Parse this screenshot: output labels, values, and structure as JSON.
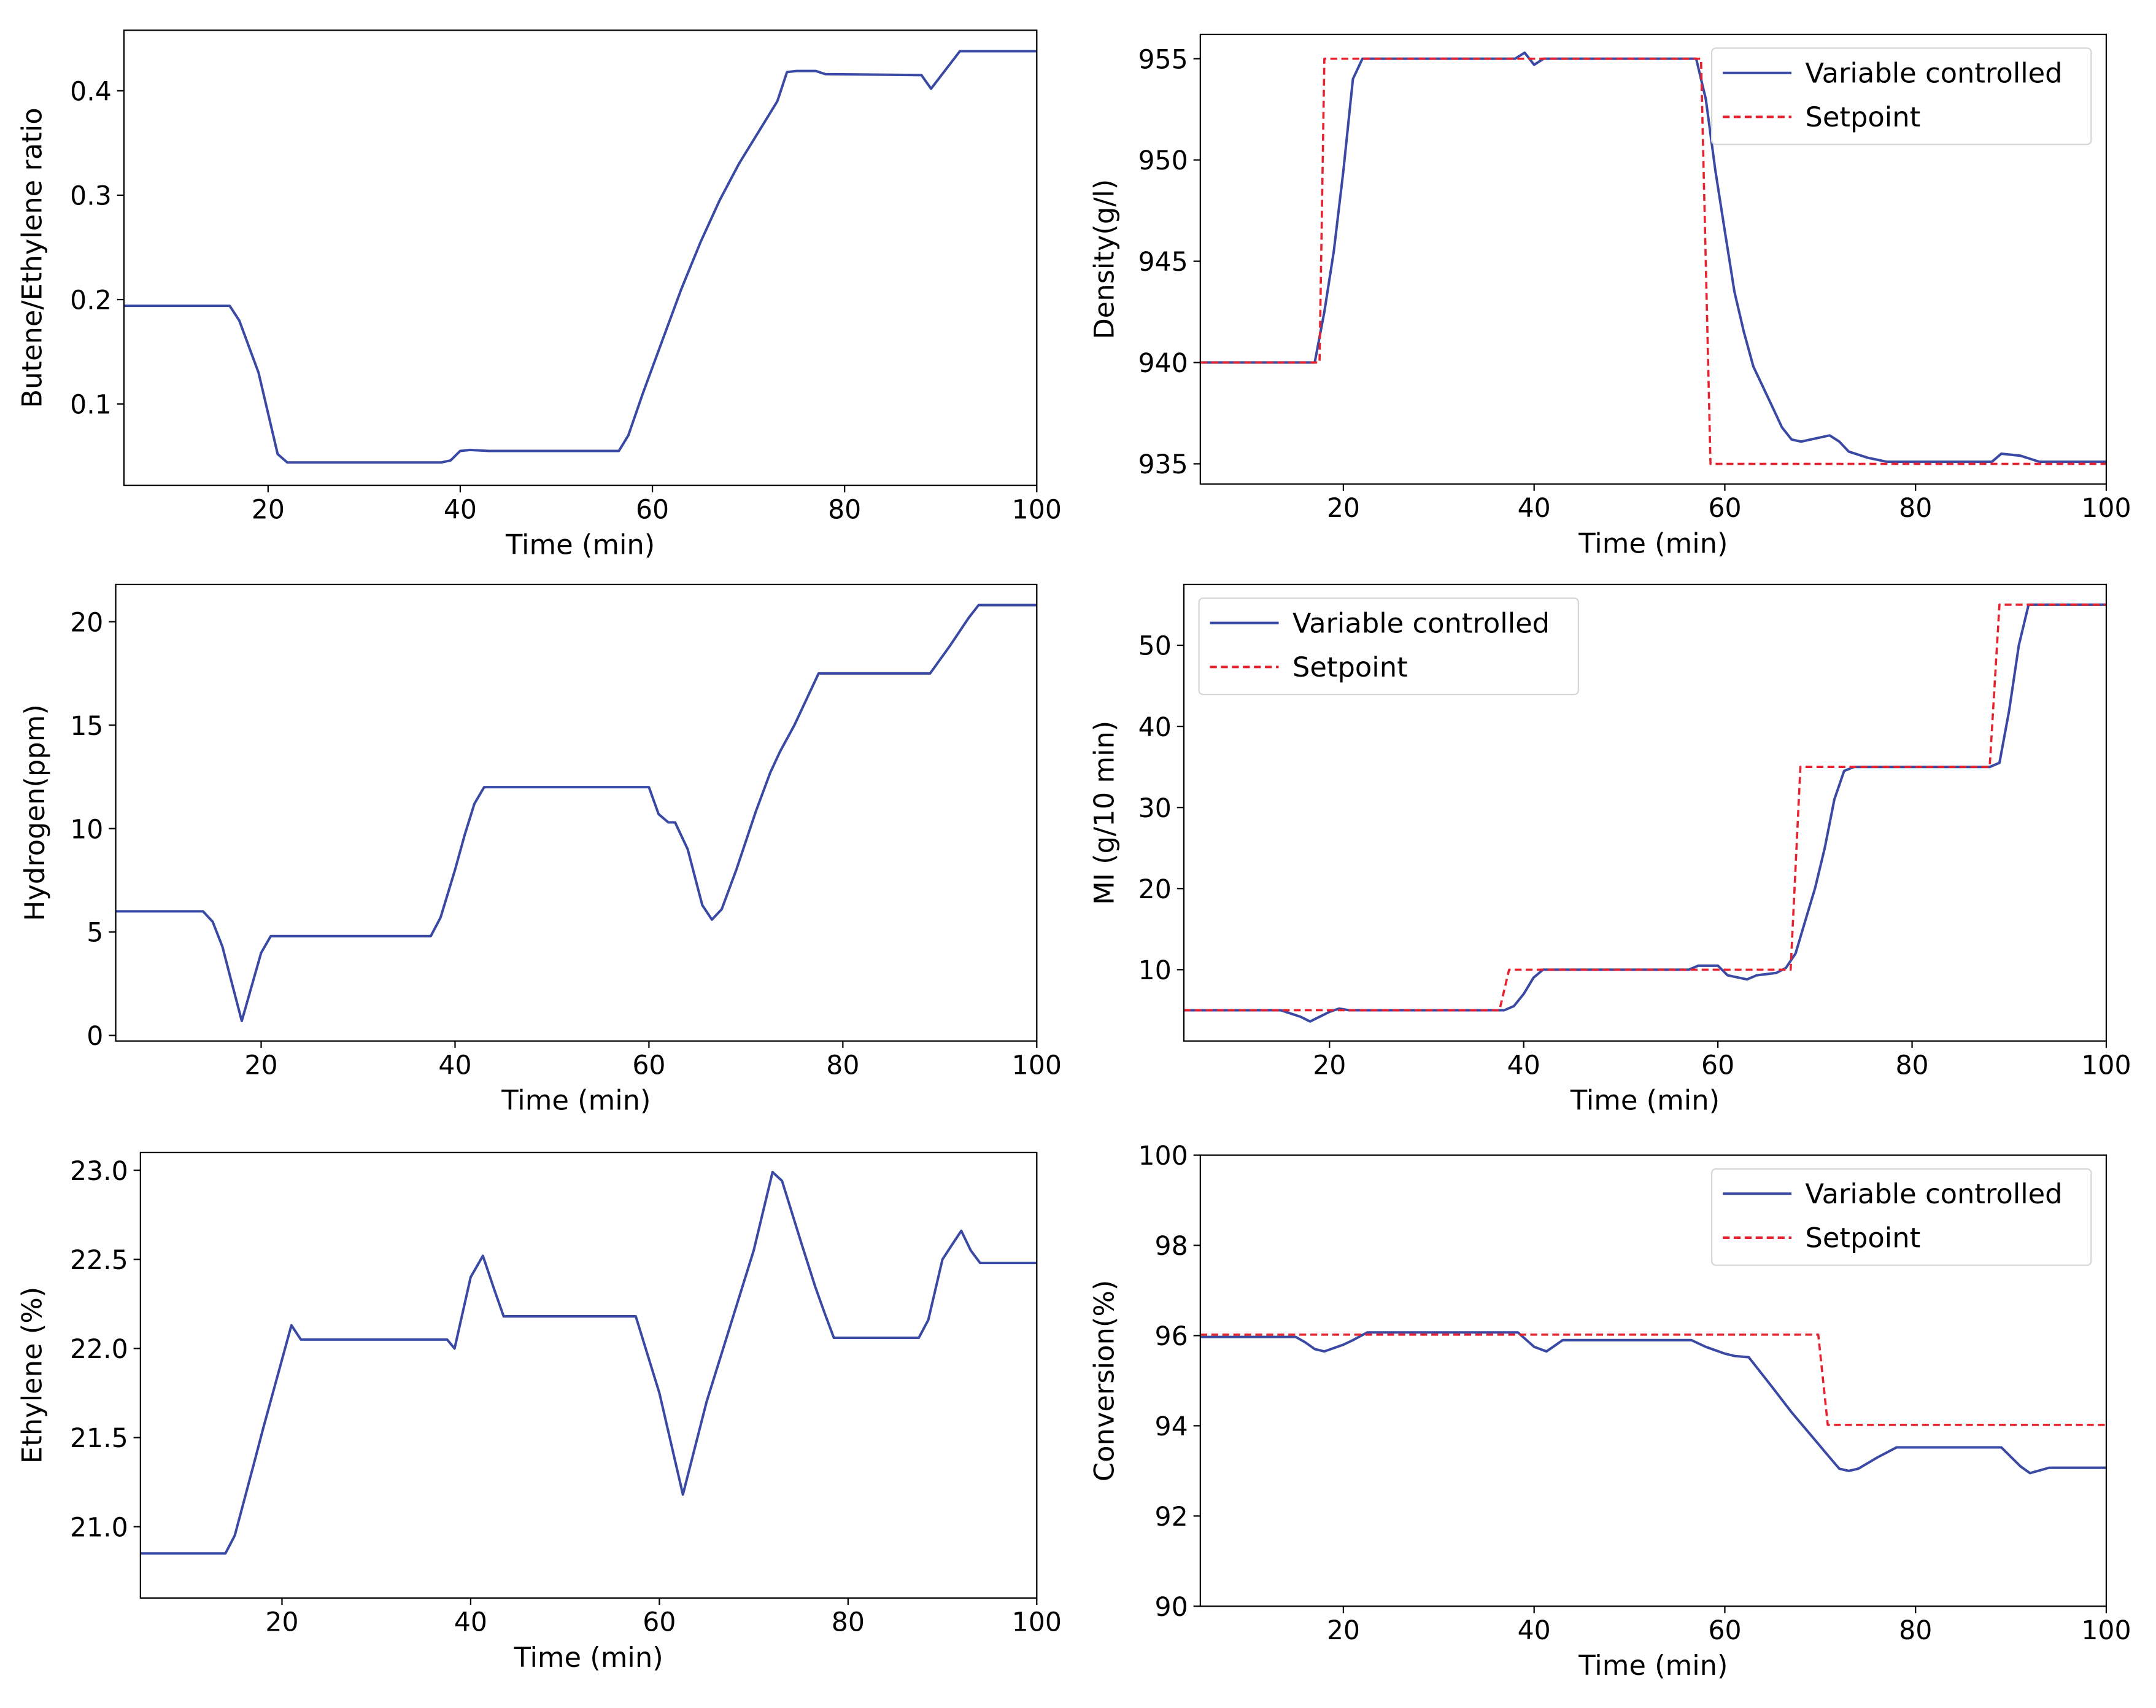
{
  "colors": {
    "variable": "#3949a4",
    "setpoint": "#e8212e"
  },
  "chart_data": [
    {
      "type": "line",
      "title": "",
      "xlabel": "Time (min)",
      "ylabel": "Butene/Ethylene ratio",
      "xlim": [
        5,
        100
      ],
      "ylim": [
        0.022,
        0.458
      ],
      "xticks": [
        20,
        40,
        60,
        80,
        100
      ],
      "yticks": [
        0.1,
        0.2,
        0.3,
        0.4
      ],
      "ytick_labels": [
        "0.1",
        "0.2",
        "0.3",
        "0.4"
      ],
      "legend": null,
      "grid": false,
      "series": [
        {
          "name": "Butene/Ethylene ratio",
          "style": "solid",
          "color_key": "variable",
          "points": [
            [
              5,
              0.194
            ],
            [
              16,
              0.194
            ],
            [
              17,
              0.18
            ],
            [
              19,
              0.13
            ],
            [
              21,
              0.052
            ],
            [
              22,
              0.044
            ],
            [
              38,
              0.044
            ],
            [
              39,
              0.046
            ],
            [
              40,
              0.055
            ],
            [
              41,
              0.056
            ],
            [
              43,
              0.055
            ],
            [
              56.5,
              0.055
            ],
            [
              57.5,
              0.07
            ],
            [
              59,
              0.11
            ],
            [
              61,
              0.16
            ],
            [
              63,
              0.21
            ],
            [
              65,
              0.255
            ],
            [
              67,
              0.295
            ],
            [
              69,
              0.33
            ],
            [
              71,
              0.36
            ],
            [
              73,
              0.39
            ],
            [
              74,
              0.418
            ],
            [
              75,
              0.419
            ],
            [
              77,
              0.419
            ],
            [
              78,
              0.416
            ],
            [
              88,
              0.415
            ],
            [
              89,
              0.402
            ],
            [
              92,
              0.438
            ],
            [
              100,
              0.438
            ]
          ]
        }
      ]
    },
    {
      "type": "line",
      "title": "",
      "xlabel": "Time (min)",
      "ylabel": "Density(g/l)",
      "xlim": [
        5,
        100
      ],
      "ylim": [
        934,
        956.2
      ],
      "xticks": [
        20,
        40,
        60,
        80,
        100
      ],
      "yticks": [
        935,
        940,
        945,
        950,
        955
      ],
      "ytick_labels": [
        "935",
        "940",
        "945",
        "950",
        "955"
      ],
      "legend": "top-right",
      "grid": false,
      "series": [
        {
          "name": "Variable controlled",
          "style": "solid",
          "color_key": "variable",
          "points": [
            [
              5,
              940
            ],
            [
              17,
              940
            ],
            [
              18,
              942.5
            ],
            [
              19,
              945.5
            ],
            [
              20,
              949.5
            ],
            [
              21,
              954
            ],
            [
              22,
              955
            ],
            [
              38,
              955
            ],
            [
              39,
              955.3
            ],
            [
              40,
              954.7
            ],
            [
              41,
              955
            ],
            [
              57,
              955
            ],
            [
              58,
              953
            ],
            [
              59,
              949.5
            ],
            [
              60,
              946.5
            ],
            [
              61,
              943.5
            ],
            [
              62,
              941.5
            ],
            [
              63,
              939.8
            ],
            [
              65,
              937.8
            ],
            [
              66,
              936.8
            ],
            [
              67,
              936.2
            ],
            [
              68,
              936.1
            ],
            [
              71,
              936.4
            ],
            [
              72,
              936.1
            ],
            [
              73,
              935.6
            ],
            [
              75,
              935.3
            ],
            [
              77,
              935.1
            ],
            [
              88,
              935.1
            ],
            [
              89,
              935.5
            ],
            [
              91,
              935.4
            ],
            [
              93,
              935.1
            ],
            [
              100,
              935.1
            ]
          ]
        },
        {
          "name": "Setpoint",
          "style": "dashed",
          "color_key": "setpoint",
          "points": [
            [
              5,
              940
            ],
            [
              17.5,
              940
            ],
            [
              18,
              955
            ],
            [
              57.5,
              955
            ],
            [
              58.5,
              935
            ],
            [
              100,
              935
            ]
          ]
        }
      ]
    },
    {
      "type": "line",
      "title": "",
      "xlabel": "Time (min)",
      "ylabel": "Hydrogen(ppm)",
      "xlim": [
        5,
        100
      ],
      "ylim": [
        -0.27,
        21.8
      ],
      "xticks": [
        20,
        40,
        60,
        80,
        100
      ],
      "yticks": [
        0,
        5,
        10,
        15,
        20
      ],
      "ytick_labels": [
        "0",
        "5",
        "10",
        "15",
        "20"
      ],
      "legend": null,
      "grid": false,
      "series": [
        {
          "name": "Hydrogen(ppm)",
          "style": "solid",
          "color_key": "variable",
          "points": [
            [
              5,
              6
            ],
            [
              14,
              6
            ],
            [
              15,
              5.5
            ],
            [
              16,
              4.3
            ],
            [
              17,
              2.5
            ],
            [
              18,
              0.7
            ],
            [
              20,
              4
            ],
            [
              21,
              4.8
            ],
            [
              37.5,
              4.8
            ],
            [
              38.5,
              5.7
            ],
            [
              40,
              8
            ],
            [
              41,
              9.7
            ],
            [
              42,
              11.2
            ],
            [
              43,
              12
            ],
            [
              60,
              12
            ],
            [
              61,
              10.7
            ],
            [
              62,
              10.3
            ],
            [
              62.7,
              10.3
            ],
            [
              64,
              9
            ],
            [
              65.5,
              6.3
            ],
            [
              66.5,
              5.6
            ],
            [
              67.5,
              6.1
            ],
            [
              69,
              8
            ],
            [
              71,
              10.8
            ],
            [
              72.5,
              12.7
            ],
            [
              73.5,
              13.7
            ],
            [
              75,
              15
            ],
            [
              77.5,
              17.5
            ],
            [
              89,
              17.5
            ],
            [
              91,
              18.8
            ],
            [
              93,
              20.2
            ],
            [
              94,
              20.8
            ],
            [
              100,
              20.8
            ]
          ]
        }
      ]
    },
    {
      "type": "line",
      "title": "",
      "xlabel": "Time (min)",
      "ylabel": "MI (g/10 min)",
      "xlim": [
        5,
        100
      ],
      "ylim": [
        1.2,
        57.5
      ],
      "xticks": [
        20,
        40,
        60,
        80,
        100
      ],
      "yticks": [
        10,
        20,
        30,
        40,
        50
      ],
      "ytick_labels": [
        "10",
        "20",
        "30",
        "40",
        "50"
      ],
      "legend": "top-left",
      "grid": false,
      "series": [
        {
          "name": "Variable controlled",
          "style": "solid",
          "color_key": "variable",
          "points": [
            [
              5,
              5
            ],
            [
              15,
              5
            ],
            [
              16,
              4.6
            ],
            [
              17,
              4.2
            ],
            [
              18,
              3.6
            ],
            [
              20,
              4.8
            ],
            [
              21,
              5.2
            ],
            [
              22,
              5
            ],
            [
              38,
              5
            ],
            [
              39,
              5.5
            ],
            [
              40,
              7
            ],
            [
              41,
              9
            ],
            [
              42,
              10
            ],
            [
              57,
              10
            ],
            [
              58,
              10.5
            ],
            [
              60,
              10.5
            ],
            [
              61,
              9.3
            ],
            [
              63,
              8.8
            ],
            [
              64,
              9.3
            ],
            [
              66,
              9.6
            ],
            [
              67,
              10.2
            ],
            [
              68,
              12
            ],
            [
              69,
              16
            ],
            [
              70,
              20
            ],
            [
              71,
              25
            ],
            [
              72,
              31
            ],
            [
              73,
              34.5
            ],
            [
              74,
              35
            ],
            [
              75,
              35
            ],
            [
              88,
              35
            ],
            [
              89,
              35.5
            ],
            [
              90,
              42
            ],
            [
              91,
              50
            ],
            [
              92,
              55
            ],
            [
              100,
              55
            ]
          ]
        },
        {
          "name": "Setpoint",
          "style": "dashed",
          "color_key": "setpoint",
          "points": [
            [
              5,
              5
            ],
            [
              37.5,
              5
            ],
            [
              38.5,
              10
            ],
            [
              67.5,
              10
            ],
            [
              68.5,
              35
            ],
            [
              88,
              35
            ],
            [
              89,
              55
            ],
            [
              100,
              55
            ]
          ]
        }
      ]
    },
    {
      "type": "line",
      "title": "",
      "xlabel": "Time (min)",
      "ylabel": "Ethylene (%)",
      "xlim": [
        5,
        100
      ],
      "ylim": [
        20.6,
        23.1
      ],
      "xticks": [
        20,
        40,
        60,
        80,
        100
      ],
      "yticks": [
        21.0,
        21.5,
        22.0,
        22.5,
        23.0
      ],
      "ytick_labels": [
        "21.0",
        "21.5",
        "22.0",
        "22.5",
        "23.0"
      ],
      "legend": null,
      "grid": false,
      "series": [
        {
          "name": "Ethylene (%)",
          "style": "solid",
          "color_key": "variable",
          "points": [
            [
              5,
              20.85
            ],
            [
              14,
              20.85
            ],
            [
              15,
              20.95
            ],
            [
              16,
              21.15
            ],
            [
              17,
              21.35
            ],
            [
              18,
              21.55
            ],
            [
              21,
              22.13
            ],
            [
              22,
              22.05
            ],
            [
              37.5,
              22.05
            ],
            [
              38.3,
              22.0
            ],
            [
              40,
              22.4
            ],
            [
              41.3,
              22.52
            ],
            [
              42.5,
              22.33
            ],
            [
              43.5,
              22.18
            ],
            [
              57.5,
              22.18
            ],
            [
              60,
              21.75
            ],
            [
              62.5,
              21.18
            ],
            [
              65,
              21.7
            ],
            [
              70,
              22.55
            ],
            [
              72,
              22.99
            ],
            [
              73,
              22.94
            ],
            [
              75,
              22.6
            ],
            [
              76.5,
              22.35
            ],
            [
              77.5,
              22.2
            ],
            [
              78.5,
              22.06
            ],
            [
              87.5,
              22.06
            ],
            [
              88.5,
              22.16
            ],
            [
              90,
              22.5
            ],
            [
              91,
              22.58
            ],
            [
              92,
              22.66
            ],
            [
              93,
              22.55
            ],
            [
              94,
              22.48
            ],
            [
              100,
              22.48
            ]
          ]
        }
      ]
    },
    {
      "type": "line",
      "title": "",
      "xlabel": "Time (min)",
      "ylabel": "Conversion(%)",
      "xlim": [
        5,
        100
      ],
      "ylim": [
        90,
        100
      ],
      "xticks": [
        20,
        40,
        60,
        80,
        100
      ],
      "yticks": [
        90,
        92,
        94,
        96,
        98,
        100
      ],
      "ytick_labels": [
        "90",
        "92",
        "94",
        "96",
        "98",
        "100"
      ],
      "legend": "top-right",
      "grid": false,
      "series": [
        {
          "name": "Variable controlled",
          "style": "solid",
          "color_key": "variable",
          "points": [
            [
              5,
              95.97
            ],
            [
              15,
              95.97
            ],
            [
              16,
              95.85
            ],
            [
              17,
              95.7
            ],
            [
              18,
              95.65
            ],
            [
              20,
              95.8
            ],
            [
              21,
              95.9
            ],
            [
              22.5,
              96.07
            ],
            [
              38.3,
              96.07
            ],
            [
              40,
              95.75
            ],
            [
              41.3,
              95.65
            ],
            [
              43,
              95.9
            ],
            [
              56.5,
              95.9
            ],
            [
              58,
              95.75
            ],
            [
              60,
              95.6
            ],
            [
              61,
              95.55
            ],
            [
              62.5,
              95.52
            ],
            [
              65,
              94.85
            ],
            [
              67,
              94.3
            ],
            [
              69,
              93.8
            ],
            [
              71,
              93.3
            ],
            [
              72,
              93.05
            ],
            [
              73,
              93.0
            ],
            [
              74,
              93.05
            ],
            [
              76,
              93.3
            ],
            [
              78,
              93.52
            ],
            [
              89,
              93.52
            ],
            [
              91,
              93.1
            ],
            [
              92,
              92.95
            ],
            [
              94,
              93.07
            ],
            [
              100,
              93.07
            ]
          ]
        },
        {
          "name": "Setpoint",
          "style": "dashed",
          "color_key": "setpoint",
          "points": [
            [
              5,
              96.02
            ],
            [
              69.8,
              96.02
            ],
            [
              70.8,
              94.02
            ],
            [
              100,
              94.02
            ]
          ]
        }
      ]
    }
  ]
}
